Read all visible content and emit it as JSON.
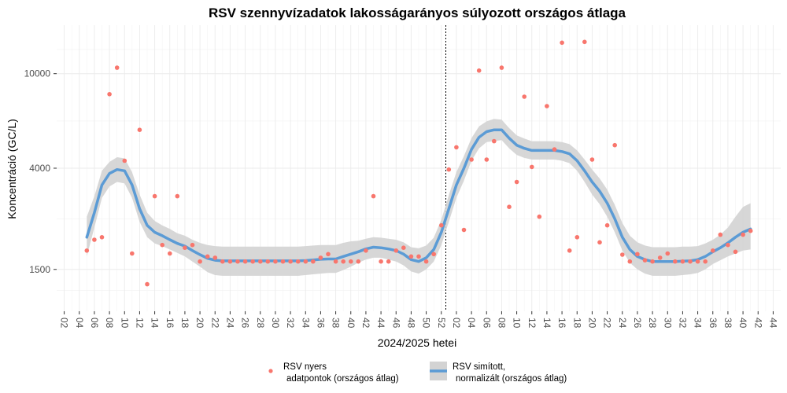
{
  "chart_data": {
    "type": "line",
    "title": "RSV szennyvízadatok lakosságarányos súlyozott országos átlaga",
    "xlabel": "2024/2025 hetei",
    "ylabel": "Koncentráció (GC/L)",
    "y_scale": "log",
    "y_ticks": [
      1500,
      4000,
      10000
    ],
    "y_tick_labels": [
      "1500",
      "4000",
      "10000"
    ],
    "ylim": [
      1000,
      16000
    ],
    "xlim": [
      0.5,
      48.5
    ],
    "x_tick_labels": [
      "02",
      "04",
      "06",
      "08",
      "10",
      "12",
      "14",
      "16",
      "18",
      "20",
      "22",
      "24",
      "26",
      "28",
      "30",
      "32",
      "34",
      "36",
      "38",
      "40",
      "42",
      "44",
      "46",
      "48",
      "50",
      "52",
      "02",
      "04",
      "06",
      "08",
      "10",
      "12",
      "14",
      "16",
      "18",
      "20",
      "22",
      "24",
      "26",
      "28",
      "30",
      "32",
      "34",
      "36",
      "38",
      "40",
      "42",
      "44"
    ],
    "year_boundary_x": 26.3,
    "colors": {
      "raw": "#f8766d",
      "smooth": "#5b9bd5",
      "band": "#d3d3d3",
      "grid": "#ebebeb"
    },
    "legend": {
      "raw_label_line1": "RSV nyers",
      "raw_label_line2": "adatpontok (országos átlag)",
      "smooth_label_line1": "RSV simított,",
      "smooth_label_line2": "normalizált (országos átlag)"
    },
    "series": [
      {
        "name": "RSV nyers adatpontok (országos átlag)",
        "type": "scatter",
        "points": [
          [
            2.5,
            1800
          ],
          [
            3,
            2000
          ],
          [
            3.5,
            2050
          ],
          [
            4,
            8200
          ],
          [
            4.5,
            10600
          ],
          [
            5,
            4300
          ],
          [
            5.5,
            1750
          ],
          [
            6,
            5800
          ],
          [
            6.5,
            1300
          ],
          [
            7,
            3050
          ],
          [
            7.5,
            1900
          ],
          [
            8,
            1750
          ],
          [
            8.5,
            3050
          ],
          [
            9,
            1850
          ],
          [
            9.5,
            1900
          ],
          [
            10,
            1620
          ],
          [
            10.5,
            1700
          ],
          [
            11,
            1680
          ],
          [
            11.5,
            1620
          ],
          [
            12,
            1620
          ],
          [
            12.5,
            1620
          ],
          [
            13,
            1620
          ],
          [
            13.5,
            1620
          ],
          [
            14,
            1620
          ],
          [
            14.5,
            1620
          ],
          [
            15,
            1620
          ],
          [
            15.5,
            1620
          ],
          [
            16,
            1620
          ],
          [
            16.5,
            1620
          ],
          [
            17,
            1620
          ],
          [
            17.5,
            1620
          ],
          [
            18,
            1680
          ],
          [
            18.5,
            1740
          ],
          [
            19,
            1620
          ],
          [
            19.5,
            1620
          ],
          [
            20,
            1620
          ],
          [
            20.5,
            1620
          ],
          [
            21,
            1800
          ],
          [
            21.5,
            3050
          ],
          [
            22,
            1620
          ],
          [
            22.5,
            1620
          ],
          [
            23,
            1800
          ],
          [
            23.5,
            1850
          ],
          [
            24,
            1700
          ],
          [
            24.5,
            1700
          ],
          [
            25,
            1620
          ],
          [
            25.5,
            1740
          ],
          [
            26,
            2300
          ],
          [
            26.5,
            3950
          ],
          [
            27,
            4900
          ],
          [
            27.5,
            2200
          ],
          [
            28,
            4350
          ],
          [
            28.5,
            10300
          ],
          [
            29,
            4350
          ],
          [
            29.5,
            5200
          ],
          [
            30,
            10600
          ],
          [
            30.5,
            2750
          ],
          [
            31,
            3500
          ],
          [
            31.5,
            8000
          ],
          [
            32,
            4050
          ],
          [
            32.5,
            2500
          ],
          [
            33,
            7300
          ],
          [
            33.5,
            4800
          ],
          [
            34,
            13500
          ],
          [
            34.5,
            1800
          ],
          [
            35,
            2050
          ],
          [
            35.5,
            13600
          ],
          [
            36,
            4350
          ],
          [
            36.5,
            1950
          ],
          [
            37,
            2300
          ],
          [
            37.5,
            5000
          ],
          [
            38,
            1730
          ],
          [
            38.5,
            1620
          ],
          [
            39,
            1740
          ],
          [
            39.5,
            1640
          ],
          [
            40,
            1620
          ],
          [
            40.5,
            1680
          ],
          [
            41,
            1750
          ],
          [
            41.5,
            1620
          ],
          [
            42,
            1620
          ],
          [
            42.5,
            1620
          ],
          [
            43,
            1620
          ],
          [
            43.5,
            1620
          ],
          [
            44,
            1800
          ],
          [
            44.5,
            2100
          ],
          [
            45,
            1900
          ],
          [
            45.5,
            1780
          ],
          [
            46,
            2100
          ],
          [
            46.5,
            2180
          ]
        ]
      },
      {
        "name": "RSV simított, normalizált (országos átlag)",
        "type": "line",
        "points": [
          [
            2.5,
            2050,
            1700,
            2500
          ],
          [
            3,
            2600,
            2250,
            3050
          ],
          [
            3.5,
            3400,
            3000,
            3900
          ],
          [
            4,
            3800,
            3350,
            4250
          ],
          [
            4.5,
            3950,
            3500,
            4450
          ],
          [
            5,
            3900,
            3450,
            4400
          ],
          [
            5.5,
            3400,
            3000,
            3850
          ],
          [
            6,
            2700,
            2380,
            3100
          ],
          [
            6.5,
            2300,
            2050,
            2600
          ],
          [
            7,
            2150,
            1930,
            2400
          ],
          [
            7.5,
            2080,
            1880,
            2300
          ],
          [
            8,
            2000,
            1820,
            2220
          ],
          [
            8.5,
            1930,
            1760,
            2130
          ],
          [
            9,
            1880,
            1700,
            2080
          ],
          [
            9.5,
            1800,
            1620,
            2000
          ],
          [
            10,
            1730,
            1540,
            1940
          ],
          [
            10.5,
            1670,
            1460,
            1900
          ],
          [
            11,
            1640,
            1420,
            1880
          ],
          [
            11.5,
            1630,
            1410,
            1870
          ],
          [
            12,
            1630,
            1410,
            1870
          ],
          [
            12.5,
            1630,
            1410,
            1870
          ],
          [
            13,
            1630,
            1410,
            1870
          ],
          [
            13.5,
            1630,
            1410,
            1870
          ],
          [
            14,
            1630,
            1410,
            1870
          ],
          [
            14.5,
            1630,
            1410,
            1870
          ],
          [
            15,
            1630,
            1410,
            1870
          ],
          [
            15.5,
            1630,
            1410,
            1870
          ],
          [
            16,
            1630,
            1410,
            1870
          ],
          [
            16.5,
            1630,
            1410,
            1870
          ],
          [
            17,
            1635,
            1420,
            1880
          ],
          [
            17.5,
            1645,
            1430,
            1890
          ],
          [
            18,
            1655,
            1440,
            1900
          ],
          [
            18.5,
            1660,
            1450,
            1900
          ],
          [
            19,
            1660,
            1450,
            1900
          ],
          [
            19.5,
            1700,
            1490,
            1940
          ],
          [
            20,
            1740,
            1540,
            1970
          ],
          [
            20.5,
            1780,
            1600,
            1980
          ],
          [
            21,
            1830,
            1650,
            2020
          ],
          [
            21.5,
            1860,
            1680,
            2050
          ],
          [
            22,
            1850,
            1680,
            2040
          ],
          [
            22.5,
            1830,
            1650,
            2020
          ],
          [
            23,
            1800,
            1620,
            2000
          ],
          [
            23.5,
            1740,
            1560,
            1950
          ],
          [
            24,
            1650,
            1470,
            1860
          ],
          [
            24.5,
            1620,
            1440,
            1840
          ],
          [
            25,
            1680,
            1500,
            1890
          ],
          [
            25.5,
            1820,
            1620,
            2040
          ],
          [
            26,
            2150,
            1900,
            2430
          ],
          [
            26.5,
            2700,
            2380,
            3080
          ],
          [
            27,
            3400,
            3000,
            3850
          ],
          [
            27.5,
            4000,
            3550,
            4500
          ],
          [
            28,
            4800,
            4300,
            5350
          ],
          [
            28.5,
            5400,
            4850,
            6000
          ],
          [
            29,
            5700,
            5150,
            6300
          ],
          [
            29.5,
            5800,
            5200,
            6450
          ],
          [
            30,
            5800,
            5250,
            6400
          ],
          [
            30.5,
            5350,
            4850,
            5900
          ],
          [
            31,
            5000,
            4550,
            5500
          ],
          [
            31.5,
            4850,
            4420,
            5330
          ],
          [
            32,
            4750,
            4350,
            5200
          ],
          [
            32.5,
            4750,
            4350,
            5200
          ],
          [
            33,
            4750,
            4350,
            5200
          ],
          [
            33.5,
            4750,
            4350,
            5200
          ],
          [
            34,
            4700,
            4300,
            5150
          ],
          [
            34.5,
            4600,
            4200,
            5050
          ],
          [
            35,
            4300,
            3900,
            4750
          ],
          [
            35.5,
            3900,
            3500,
            4350
          ],
          [
            36,
            3500,
            3100,
            3950
          ],
          [
            36.5,
            3200,
            2820,
            3620
          ],
          [
            37,
            2850,
            2500,
            3250
          ],
          [
            37.5,
            2450,
            2150,
            2800
          ],
          [
            38,
            2050,
            1800,
            2350
          ],
          [
            38.5,
            1820,
            1600,
            2080
          ],
          [
            39,
            1700,
            1500,
            1950
          ],
          [
            39.5,
            1650,
            1440,
            1890
          ],
          [
            40,
            1620,
            1410,
            1860
          ],
          [
            40.5,
            1620,
            1410,
            1860
          ],
          [
            41,
            1620,
            1410,
            1860
          ],
          [
            41.5,
            1620,
            1410,
            1860
          ],
          [
            42,
            1625,
            1420,
            1870
          ],
          [
            42.5,
            1630,
            1430,
            1870
          ],
          [
            43,
            1650,
            1450,
            1880
          ],
          [
            43.5,
            1700,
            1500,
            1930
          ],
          [
            44,
            1780,
            1580,
            2000
          ],
          [
            44.5,
            1850,
            1640,
            2100
          ],
          [
            45,
            1940,
            1700,
            2250
          ],
          [
            45.5,
            2050,
            1750,
            2500
          ],
          [
            46,
            2150,
            1800,
            2750
          ],
          [
            46.5,
            2220,
            1820,
            2850
          ]
        ]
      }
    ]
  }
}
